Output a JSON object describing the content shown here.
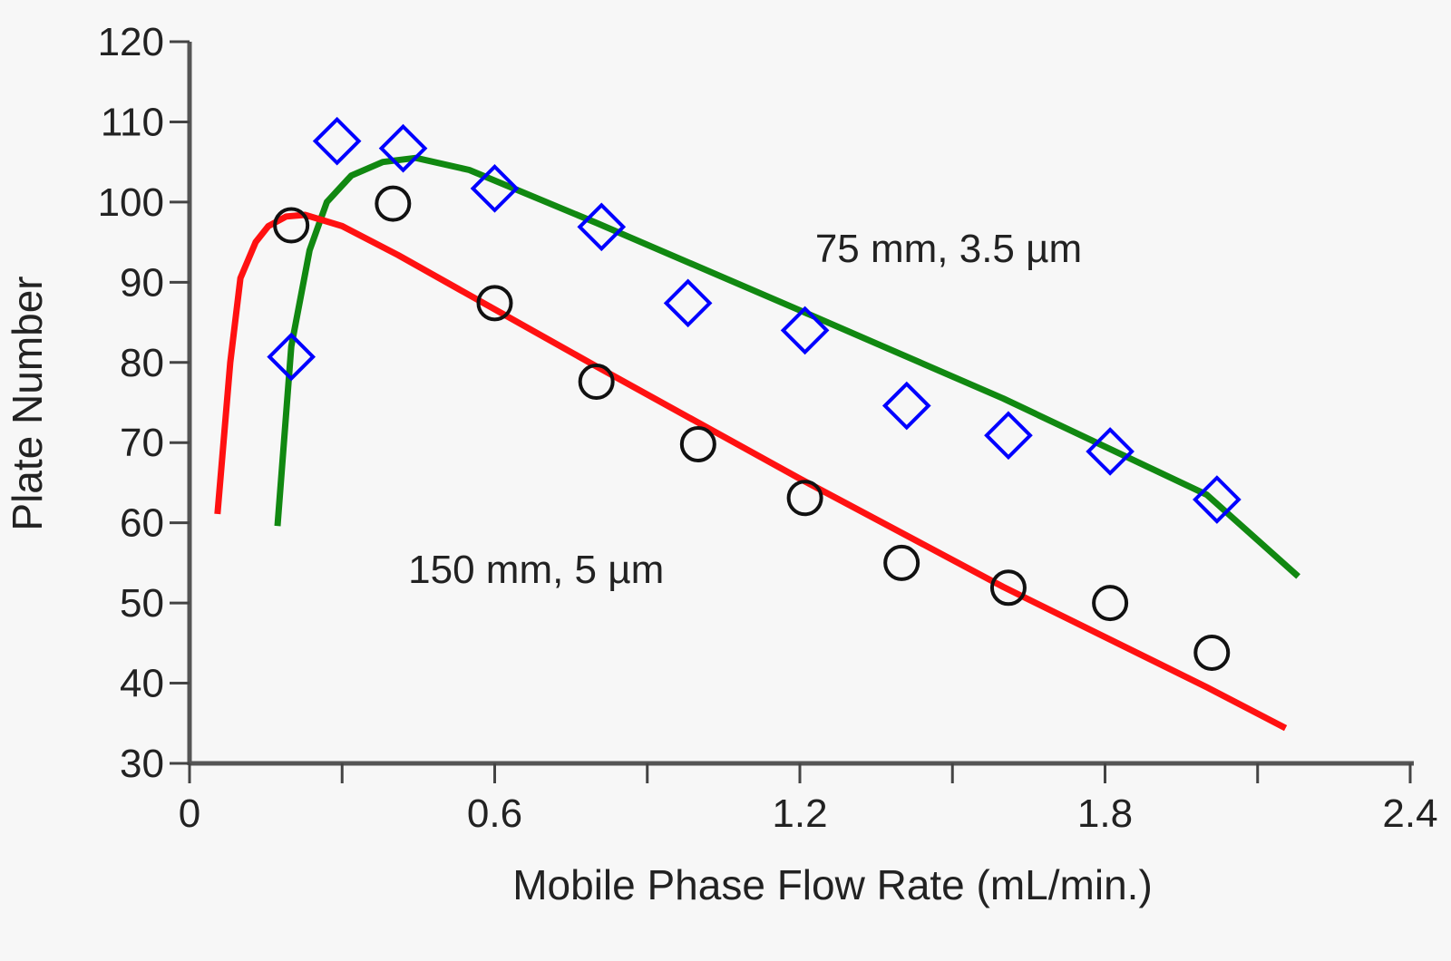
{
  "chart_data": {
    "type": "scatter",
    "title": "",
    "xlabel": "Mobile Phase Flow Rate (mL/min.)",
    "ylabel": "Plate Number",
    "xlim": [
      0,
      2.4
    ],
    "ylim": [
      30,
      120
    ],
    "xticks": [
      0,
      0.3,
      0.6,
      0.9,
      1.2,
      1.5,
      1.8,
      2.1,
      2.4
    ],
    "xtick_labels": [
      "0",
      "",
      "0.6",
      "",
      "1.2",
      "",
      "1.8",
      "",
      "2.4"
    ],
    "yticks": [
      30,
      40,
      50,
      60,
      70,
      80,
      90,
      100,
      110,
      120
    ],
    "ytick_labels": [
      "30",
      "40",
      "50",
      "60",
      "70",
      "80",
      "90",
      "100",
      "110",
      "120"
    ],
    "grid": false,
    "annotations": [
      {
        "text": "75 mm, 3.5 µm",
        "x": 1.23,
        "y": 92.5
      },
      {
        "text": "150 mm, 5 µm",
        "x": 0.43,
        "y": 52.5
      }
    ],
    "series": [
      {
        "name": "75 mm, 3.5 µm data",
        "kind": "points",
        "marker": "diamond",
        "color": "#0000ff",
        "x": [
          0.2,
          0.29,
          0.42,
          0.6,
          0.81,
          0.98,
          1.21,
          1.41,
          1.61,
          1.81,
          2.02
        ],
        "y": [
          80.7,
          107.6,
          106.7,
          101.7,
          96.9,
          87.4,
          84.0,
          74.6,
          70.9,
          68.9,
          62.9
        ]
      },
      {
        "name": "150 mm, 5 µm data",
        "kind": "points",
        "marker": "circle",
        "color": "#111111",
        "x": [
          0.2,
          0.4,
          0.6,
          0.8,
          1.0,
          1.21,
          1.4,
          1.61,
          1.81,
          2.01
        ],
        "y": [
          97.1,
          99.8,
          87.4,
          77.6,
          69.8,
          63.1,
          55.0,
          51.9,
          50.0,
          43.8
        ]
      },
      {
        "name": "75 mm, 3.5 µm fit",
        "kind": "line",
        "color": "#118811",
        "x": [
          0.173,
          0.2,
          0.236,
          0.27,
          0.318,
          0.38,
          0.445,
          0.55,
          0.8,
          1.2,
          1.6,
          2.0,
          2.18
        ],
        "y": [
          59.6,
          82,
          94,
          100,
          103.3,
          105,
          105.5,
          104,
          97.4,
          86.5,
          75.5,
          63.5,
          53.3
        ]
      },
      {
        "name": "150 mm, 5 µm fit",
        "kind": "line",
        "color": "#ff1111",
        "x": [
          0.055,
          0.08,
          0.1,
          0.13,
          0.155,
          0.19,
          0.227,
          0.3,
          0.41,
          0.8,
          1.2,
          1.6,
          2.0,
          2.155
        ],
        "y": [
          61.1,
          80,
          90.5,
          95,
          97,
          98.2,
          98.4,
          97,
          93.4,
          79.5,
          65.5,
          52,
          39.5,
          34.4
        ]
      }
    ]
  }
}
